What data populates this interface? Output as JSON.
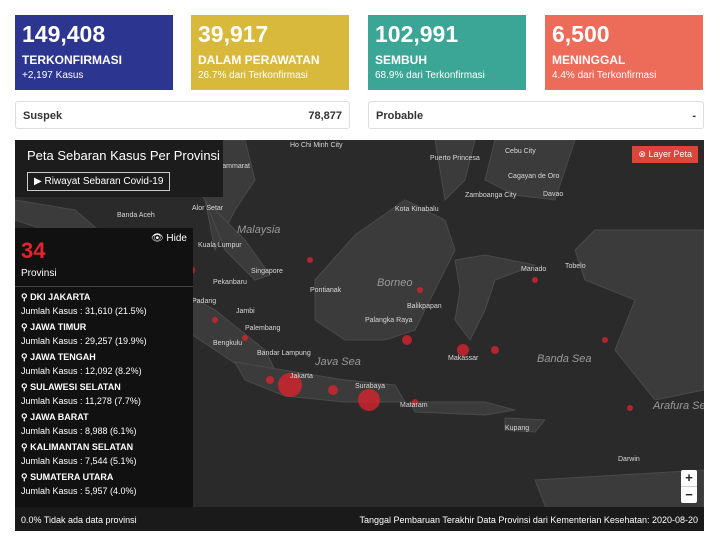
{
  "cards": [
    {
      "value": "149,408",
      "label": "TERKONFIRMASI",
      "sub": "+2,197 Kasus"
    },
    {
      "value": "39,917",
      "label": "DALAM PERAWATAN",
      "sub": "26.7% dari Terkonfirmasi"
    },
    {
      "value": "102,991",
      "label": "SEMBUH",
      "sub": "68.9% dari Terkonfirmasi"
    },
    {
      "value": "6,500",
      "label": "MENINGGAL",
      "sub": "4.4% dari Terkonfirmasi"
    }
  ],
  "extra": [
    {
      "label": "Suspek",
      "value": "78,877"
    },
    {
      "label": "Probable",
      "value": "-"
    }
  ],
  "map": {
    "title": "Peta Sebaran Kasus Per Provinsi",
    "history_button": "Riwayat Sebaran Covid-19",
    "layer_button": "Layer Peta",
    "hide": "Hide",
    "count": "34",
    "count_label": "Provinsi",
    "provinces": [
      {
        "name": "DKI JAKARTA",
        "cases": "Jumlah Kasus : 31,610 (21.5%)"
      },
      {
        "name": "JAWA TIMUR",
        "cases": "Jumlah Kasus : 29,257 (19.9%)"
      },
      {
        "name": "JAWA TENGAH",
        "cases": "Jumlah Kasus : 12,092 (8.2%)"
      },
      {
        "name": "SULAWESI SELATAN",
        "cases": "Jumlah Kasus : 11,278 (7.7%)"
      },
      {
        "name": "JAWA BARAT",
        "cases": "Jumlah Kasus : 8,988 (6.1%)"
      },
      {
        "name": "KALIMANTAN SELATAN",
        "cases": "Jumlah Kasus : 7,544 (5.1%)"
      },
      {
        "name": "SUMATERA UTARA",
        "cases": "Jumlah Kasus : 5,957 (4.0%)"
      }
    ],
    "labels": [
      "Ho Chi Minh City",
      "Puerto Princesa",
      "Cebu City",
      "Cagayan de Oro",
      "Zamboanga City",
      "Davao",
      "Kota Kinabalu",
      "Nakhon Si Thammarat",
      "Alor Setar",
      "Banda Aceh",
      "Malaysia",
      "Kuala Lumpur",
      "Singapore",
      "Pekanbaru",
      "Padang",
      "Jambi",
      "Palembang",
      "Bengkulu",
      "Bandar Lampung",
      "Pontianak",
      "Borneo",
      "Palangka Raya",
      "Balikpapan",
      "Manado",
      "Tobelo",
      "Makassar",
      "Java Sea",
      "Jakarta",
      "Surabaya",
      "Mataram",
      "Banda Sea",
      "Kupang",
      "Arafura Sea",
      "Darwin"
    ],
    "zoom_in": "+",
    "zoom_out": "−",
    "footer_left": "0.0% Tidak ada data provinsi",
    "footer_right": "Tanggal Pembaruan Terakhir Data Provinsi dari Kementerian Kesehatan: 2020-08-20"
  }
}
